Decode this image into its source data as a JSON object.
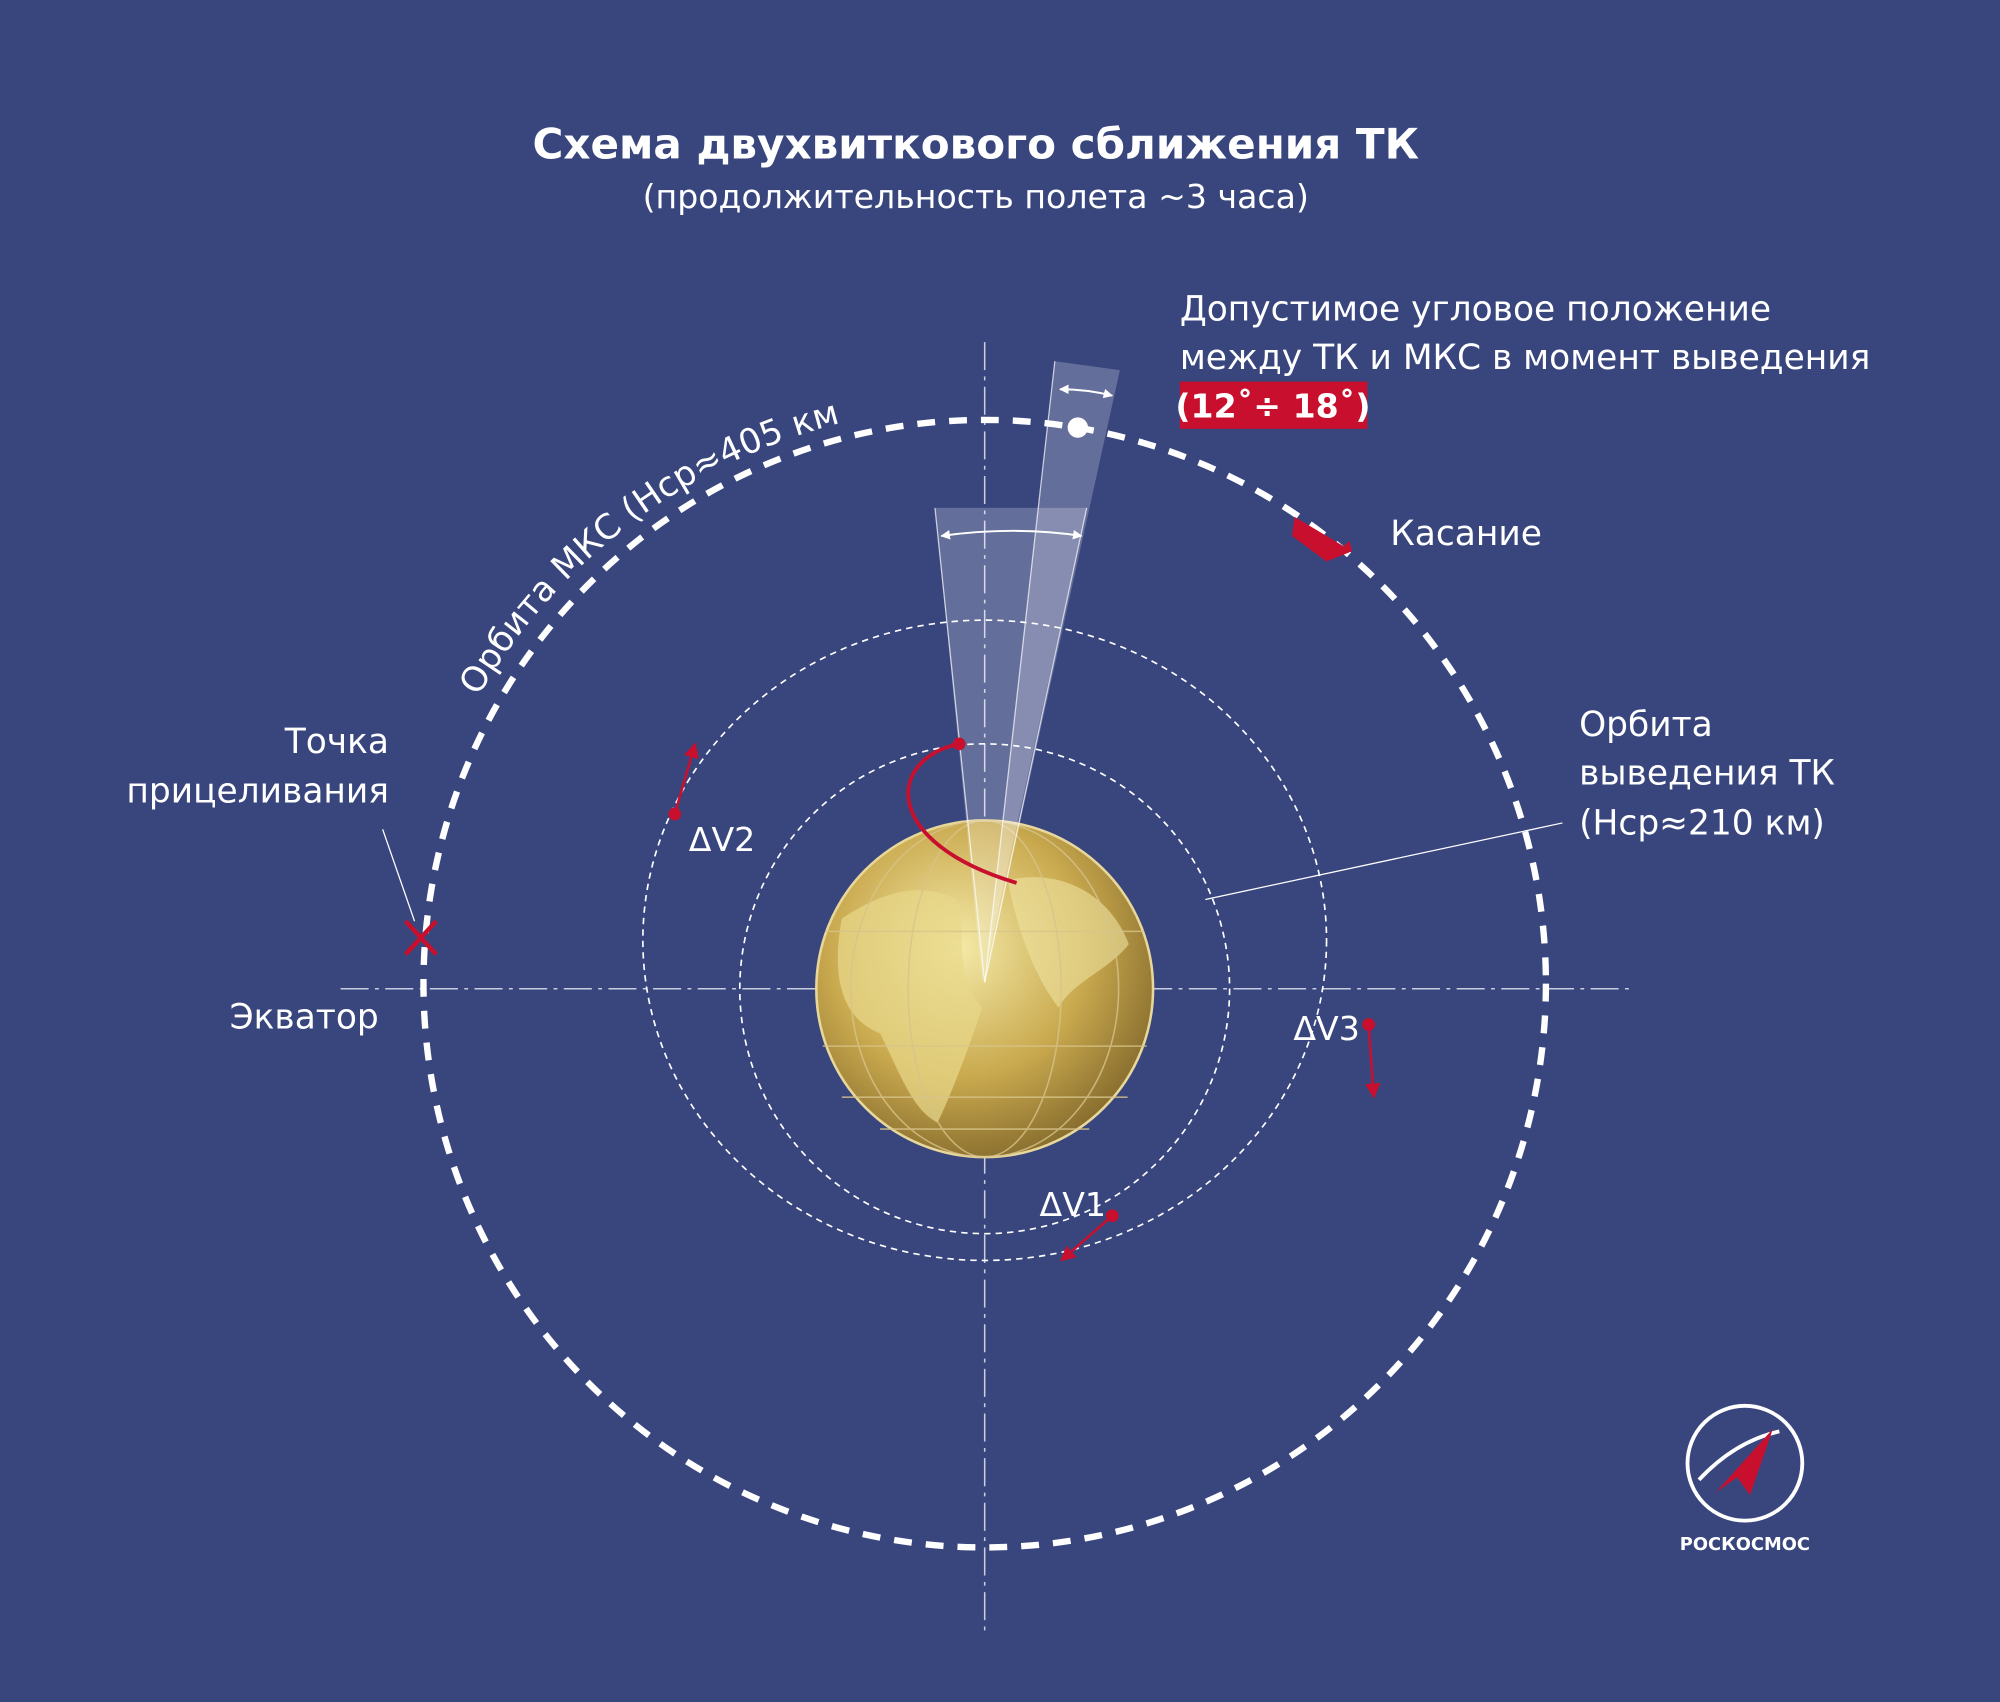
{
  "header": {
    "title": "Схема двухвиткового сближения ТК",
    "subtitle": "(продолжительность полета ~3 часа)"
  },
  "labels": {
    "angle_note": [
      "Допустимое угловое положение",
      "между ТК и МКС  в момент выведения"
    ],
    "angle_range": "(12˚÷ 18˚)",
    "contact": "Касание",
    "insertion_orbit": [
      "Орбита",
      "выведения ТК",
      "(Нср≈210 км)"
    ],
    "aim_point": [
      "Точка",
      "прицеливания"
    ],
    "equator": "Экватор",
    "iss_orbit": "Орбита МКС (Нср≈405 км)",
    "dv1": "ΔV1",
    "dv2": "ΔV2",
    "dv3": "ΔV3",
    "logo": "РОСКОСМОС"
  }
}
